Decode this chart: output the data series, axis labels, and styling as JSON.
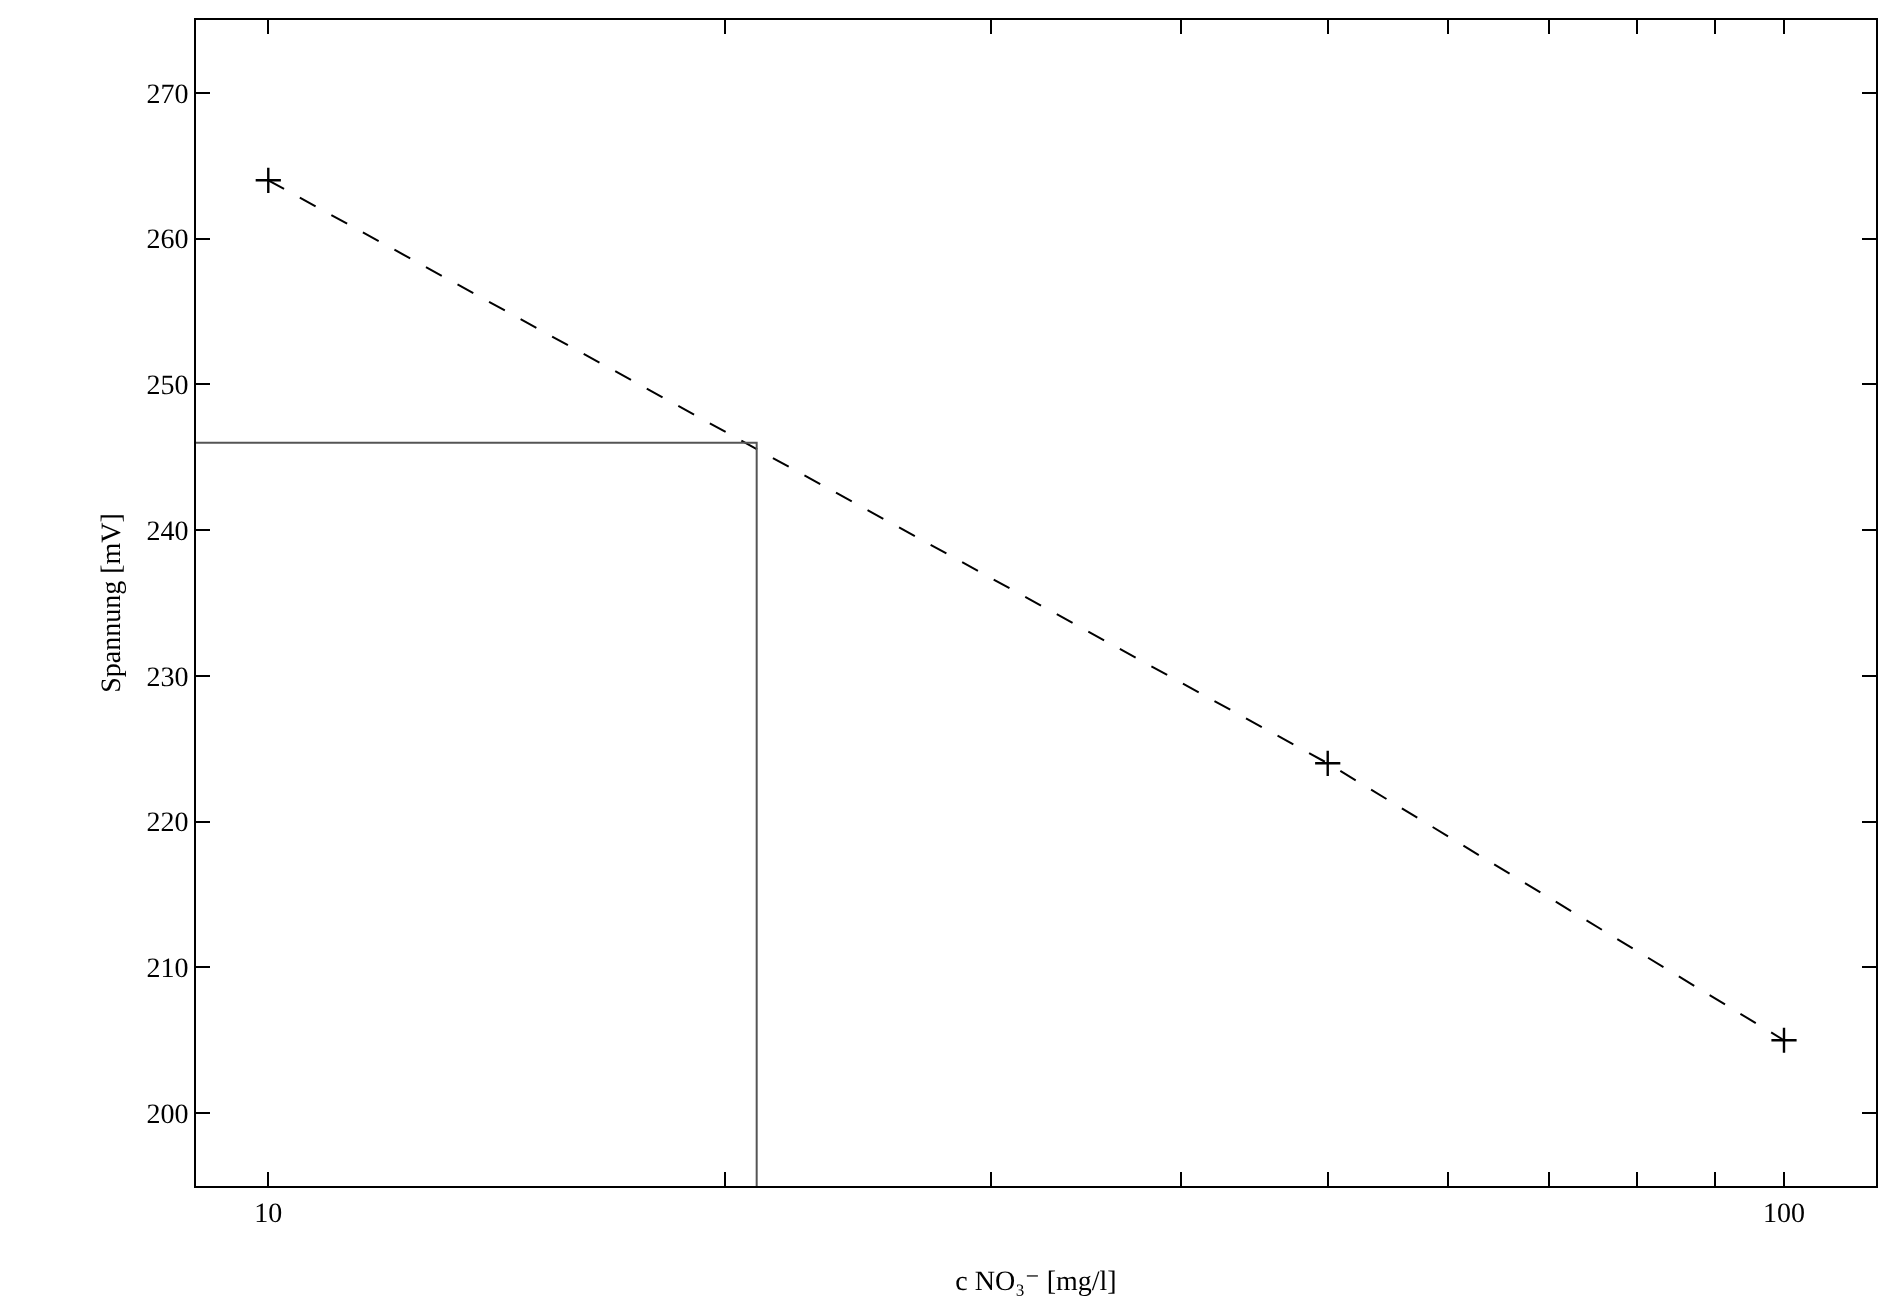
{
  "chart_data": {
    "type": "line",
    "xlabel": "c NO₃⁻ [mg/l]",
    "ylabel": "Spannung [mV]",
    "log": "x",
    "xlim": [
      8.96,
      115
    ],
    "xticks": [
      10,
      {
        "value": 20,
        "label": null
      },
      {
        "value": 30,
        "label": null
      },
      {
        "value": 40,
        "label": null
      },
      {
        "value": 50,
        "label": null
      },
      {
        "value": 60,
        "label": null
      },
      {
        "value": 70,
        "label": null
      },
      {
        "value": 80,
        "label": null
      },
      {
        "value": 90,
        "label": null
      },
      100
    ],
    "ylim": [
      195,
      275
    ],
    "yticks": [
      200,
      210,
      220,
      230,
      240,
      250,
      260,
      270
    ],
    "grid": false,
    "series": [
      {
        "color": "#000000",
        "x": [
          10,
          50,
          100
        ],
        "values": [
          264,
          224,
          205
        ],
        "marker": "cross",
        "line_style": "dashed"
      },
      {
        "color": "#555555",
        "x": [
          8.96,
          21,
          21
        ],
        "values": [
          246,
          246,
          195
        ],
        "marker": "none",
        "line_style": "solid"
      }
    ]
  }
}
